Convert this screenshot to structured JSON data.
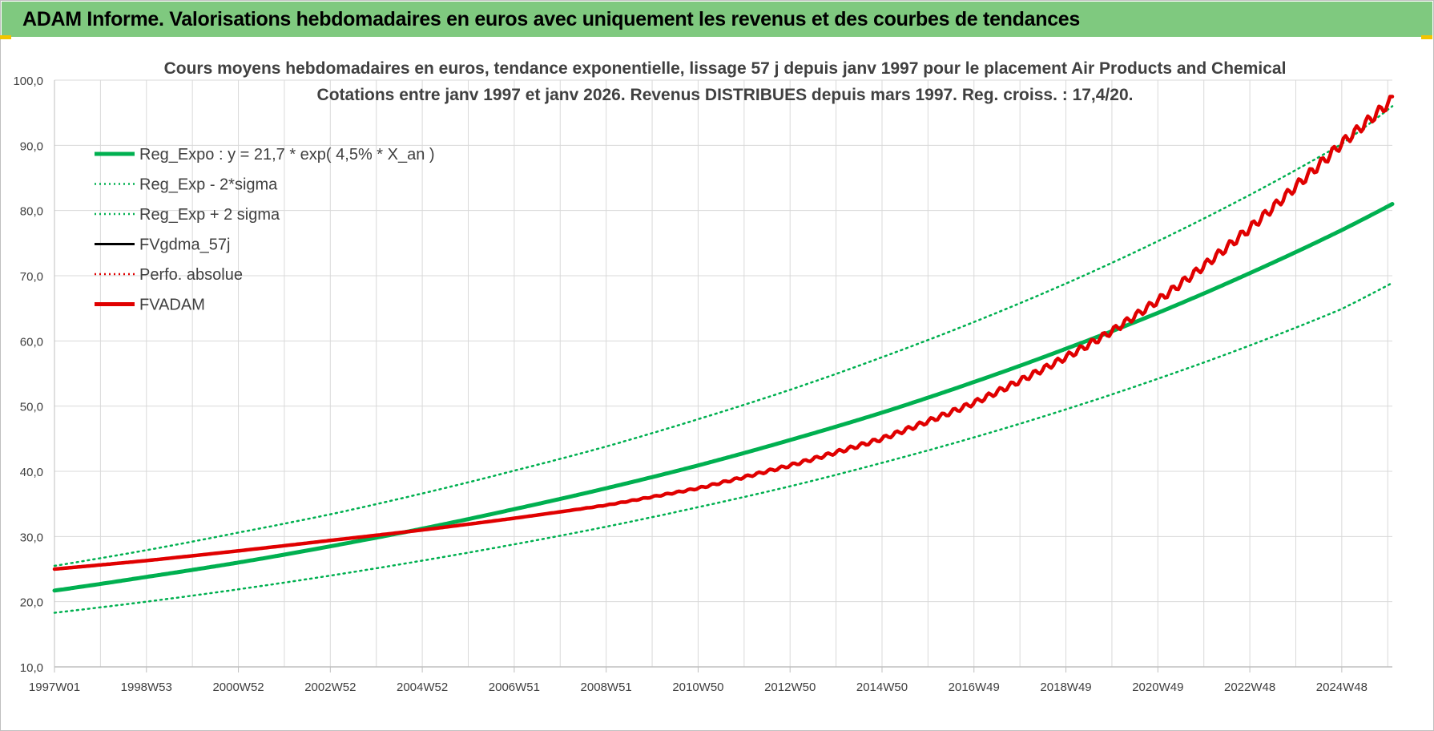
{
  "header": {
    "title": "ADAM Informe. Valorisations hebdomadaires en euros avec uniquement les revenus et des courbes de tendances"
  },
  "colors": {
    "banner": "#7fc97f",
    "green": "#00b050",
    "red": "#e00000",
    "black": "#000000",
    "grid": "#d9d9d9"
  },
  "chart_data": {
    "type": "line",
    "title": "Cours moyens hebdomadaires en euros, tendance exponentielle, lissage 57 j depuis janv 1997  pour le placement Air Products and Chemical",
    "subtitle": "Cotations entre janv 1997 et janv 2026. Revenus DISTRIBUES depuis mars 1997. Reg. croiss. : 17,4/20.",
    "xlabel": "",
    "ylabel": "",
    "ylim": [
      10,
      100
    ],
    "y_ticks": [
      "10,0",
      "20,0",
      "30,0",
      "40,0",
      "50,0",
      "60,0",
      "70,0",
      "80,0",
      "90,0",
      "100,0"
    ],
    "x_tick_labels": [
      "1997W01",
      "1998W53",
      "2000W52",
      "2002W52",
      "2004W52",
      "2006W51",
      "2008W51",
      "2010W50",
      "2012W50",
      "2014W50",
      "2016W49",
      "2018W49",
      "2020W49",
      "2022W48",
      "2024W48"
    ],
    "grid": true,
    "legend_position": "top-left",
    "legend": [
      {
        "label": "Reg_Expo : y = 21,7 * exp( 4,5% *  X_an )",
        "style": "solid-thick",
        "color": "#00b050"
      },
      {
        "label": "Reg_Exp - 2*sigma",
        "style": "dotted",
        "color": "#00b050"
      },
      {
        "label": "Reg_Exp + 2 sigma",
        "style": "dotted",
        "color": "#00b050"
      },
      {
        "label": "FVgdma_57j",
        "style": "solid",
        "color": "#000000"
      },
      {
        "label": "Perfo. absolue",
        "style": "dotted",
        "color": "#e00000"
      },
      {
        "label": "FVADAM",
        "style": "solid-thick",
        "color": "#e00000"
      }
    ],
    "x_range_years": [
      1997.0,
      2026.1
    ],
    "series": [
      {
        "name": "Reg_Expo : y = 21,7 * exp( 4,5% *  X_an )",
        "x": [
          1997,
          1999,
          2001,
          2003,
          2005,
          2007,
          2009,
          2011,
          2013,
          2015,
          2017,
          2019,
          2021,
          2023,
          2025,
          2026.1
        ],
        "y": [
          21.7,
          23.8,
          26.0,
          28.5,
          31.2,
          34.2,
          37.4,
          40.9,
          44.8,
          49.0,
          53.7,
          58.8,
          64.3,
          70.4,
          77.0,
          81.0
        ]
      },
      {
        "name": "Reg_Exp - 2*sigma",
        "x": [
          1997,
          1999,
          2001,
          2003,
          2005,
          2007,
          2009,
          2011,
          2013,
          2015,
          2017,
          2019,
          2021,
          2023,
          2025,
          2026.1
        ],
        "y": [
          18.3,
          20.0,
          21.9,
          24.0,
          26.3,
          28.8,
          31.5,
          34.5,
          37.7,
          41.3,
          45.2,
          49.5,
          54.2,
          59.3,
          64.9,
          68.9
        ]
      },
      {
        "name": "Reg_Exp + 2 sigma",
        "x": [
          1997,
          1999,
          2001,
          2003,
          2005,
          2007,
          2009,
          2011,
          2013,
          2015,
          2017,
          2019,
          2021,
          2023,
          2025,
          2026.1
        ],
        "y": [
          25.5,
          27.9,
          30.6,
          33.4,
          36.6,
          40.1,
          43.8,
          48.0,
          52.5,
          57.5,
          62.9,
          68.8,
          75.3,
          82.4,
          90.2,
          96.0
        ]
      },
      {
        "name": "FVADAM",
        "x": [
          1997,
          1999,
          2001,
          2003,
          2005,
          2007,
          2009,
          2011,
          2013,
          2015,
          2017,
          2019,
          2020,
          2021,
          2022,
          2023,
          2024,
          2025,
          2026.1
        ],
        "y": [
          25.0,
          26.3,
          27.8,
          29.4,
          31.0,
          32.8,
          34.8,
          37.4,
          40.9,
          45.0,
          50.5,
          57.5,
          61.5,
          66.2,
          71.5,
          77.3,
          83.7,
          90.3,
          97.0
        ]
      }
    ]
  }
}
